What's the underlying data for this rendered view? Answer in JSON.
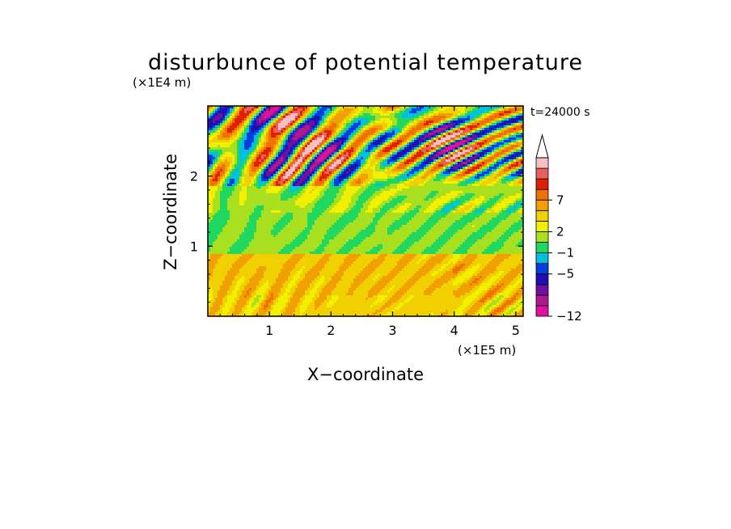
{
  "chart_data": {
    "type": "heatmap",
    "title": "disturbunce of potential temperature",
    "time_label": "t=24000 s",
    "xlabel": "X−coordinate",
    "ylabel": "Z−coordinate",
    "x_unit": "(×1E5 m)",
    "y_unit": "(×1E4 m)",
    "xlim": [
      0,
      5.12
    ],
    "ylim": [
      0,
      3.0
    ],
    "x_ticks": [
      {
        "value": 1,
        "label": "1"
      },
      {
        "value": 2,
        "label": "2"
      },
      {
        "value": 3,
        "label": "3"
      },
      {
        "value": 4,
        "label": "4"
      },
      {
        "value": 5,
        "label": "5"
      }
    ],
    "y_ticks": [
      {
        "value": 1,
        "label": "1"
      },
      {
        "value": 2,
        "label": "2"
      }
    ],
    "colorbar": {
      "colors": [
        "#e010a0",
        "#b01890",
        "#7010a0",
        "#2010b0",
        "#0040e0",
        "#00c0e0",
        "#20d860",
        "#a8e020",
        "#f0f000",
        "#f0d000",
        "#f0a000",
        "#f07000",
        "#e02000",
        "#e86060",
        "#f8c0c0"
      ],
      "labels": [
        {
          "index": 0,
          "label": "−12"
        },
        {
          "index": 4,
          "label": "−5"
        },
        {
          "index": 6,
          "label": "−1"
        },
        {
          "index": 8,
          "label": "2"
        },
        {
          "index": 11,
          "label": "7"
        }
      ],
      "extend_top": true
    },
    "field": {
      "description_bands": [
        {
          "z_range": [
            0,
            0.3
          ],
          "dominant_level": 9
        },
        {
          "z_range": [
            0.3,
            0.9
          ],
          "dominant_level": 9
        },
        {
          "z_range": [
            0.9,
            1.5
          ],
          "dominant_level": 6
        },
        {
          "z_range": [
            1.5,
            3.0
          ],
          "dominant_level": 7
        }
      ]
    }
  }
}
